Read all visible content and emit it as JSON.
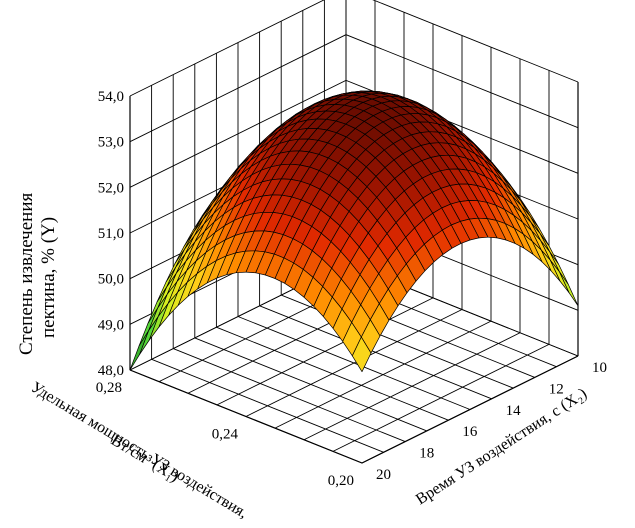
{
  "chart_data": {
    "type": "surface",
    "title": "",
    "zlabel_line1": "Степень извлечения",
    "zlabel_line2": "пектина, % (Y)",
    "x1label_line1": "Удельная мощность УЗ воздействия,",
    "x1label_line2": "Вт/см³ (X₁)",
    "x2label": "Время УЗ воздействия, с (X₂)",
    "x1_ticks": [
      "0,28",
      "0,24",
      "0,20"
    ],
    "x2_ticks": [
      "10",
      "12",
      "14",
      "16",
      "18",
      "20"
    ],
    "z_ticks": [
      "48,0",
      "49,0",
      "50,0",
      "51,0",
      "52,0",
      "53,0",
      "54,0"
    ],
    "x1_range": [
      0.2,
      0.28
    ],
    "x2_range": [
      10,
      20
    ],
    "zlim": [
      48,
      54
    ],
    "surface_peak": {
      "x1": 0.24,
      "x2": 15,
      "y": 53.6
    },
    "surface_corners": [
      {
        "x1": 0.28,
        "x2": 20,
        "y": 48.0
      },
      {
        "x1": 0.28,
        "x2": 10,
        "y": 50.0
      },
      {
        "x1": 0.2,
        "x2": 20,
        "y": 50.0
      },
      {
        "x1": 0.2,
        "x2": 10,
        "y": 49.1
      }
    ],
    "colormap": [
      "#1f8a1f",
      "#4fd63a",
      "#d8f020",
      "#ffd21a",
      "#ff8a00",
      "#e22a00",
      "#9e1400",
      "#6a0c00"
    ],
    "grid": true
  }
}
